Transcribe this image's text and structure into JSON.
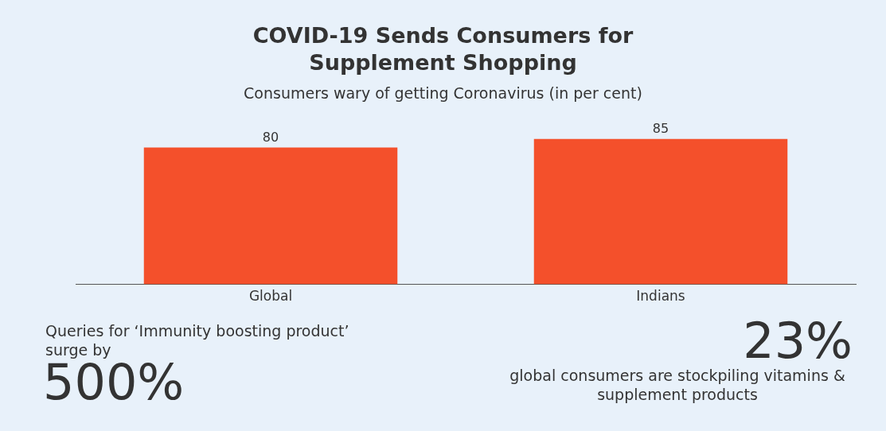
{
  "chart_data": {
    "type": "bar",
    "title": "COVID-19 Sends Consumers for Supplement Shopping",
    "subtitle": "Consumers wary of getting Coronavirus (in per cent)",
    "categories": [
      "Global",
      "Indians"
    ],
    "values": [
      80,
      85
    ],
    "color": "#f4502b",
    "data_labels": true,
    "grid": false,
    "legend": false,
    "annotations": [
      "Queries for ‘Immunity boosting product’ surge by",
      "500%",
      "23%",
      "global consumers are stockpiling vitamins & supplement products"
    ]
  }
}
